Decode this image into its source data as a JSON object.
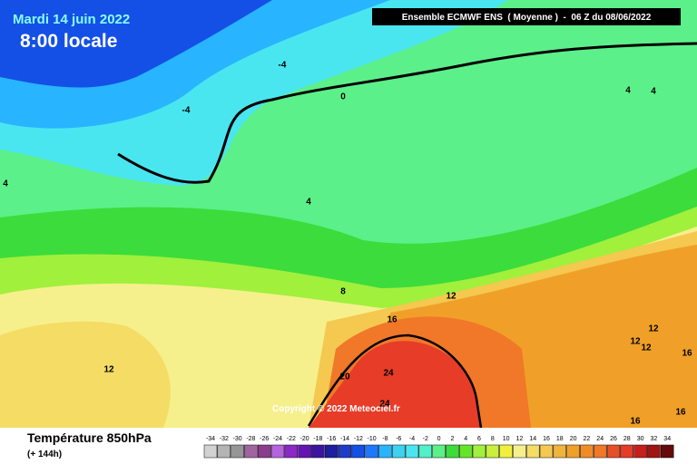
{
  "header": {
    "date": "Mardi 14 juin 2022",
    "time": "8:00 locale",
    "run": "Ensemble ECMWF ENS  ( Moyenne )  -  06 Z du 08/06/2022"
  },
  "copyright": "Copyright © 2022 Meteociel.fr",
  "footer": {
    "title": "Température 850hPa",
    "subtitle": "(+ 144h)"
  },
  "contour_labels": [
    -4,
    -4,
    0,
    4,
    4,
    4,
    4,
    8,
    12,
    12,
    16,
    12,
    12,
    12,
    16,
    20,
    24,
    24,
    16,
    16
  ],
  "legend": {
    "labels": [
      -34,
      -32,
      -30,
      -28,
      -26,
      -24,
      -22,
      -20,
      -18,
      -16,
      -14,
      -12,
      -10,
      -8,
      -6,
      -4,
      -2,
      0,
      2,
      4,
      6,
      8,
      10,
      12,
      14,
      16,
      18,
      20,
      22,
      24,
      26,
      28,
      30,
      32,
      34
    ],
    "colors": [
      "#d2d2d2",
      "#b4b4b4",
      "#969696",
      "#a064a0",
      "#8c3c8c",
      "#b464dc",
      "#8c28c8",
      "#6414b4",
      "#3c14a0",
      "#1e1ea0",
      "#1e3cc8",
      "#1450e6",
      "#1e78ff",
      "#28b4ff",
      "#3cd2f0",
      "#4ae6f0",
      "#50f0c8",
      "#5cf08a",
      "#3cdc3c",
      "#64e628",
      "#a0f03c",
      "#c8f03c",
      "#f0f03c",
      "#f5f08c",
      "#f5dc64",
      "#f5c850",
      "#f0b43c",
      "#f0a028",
      "#f08c28",
      "#f07828",
      "#e65028",
      "#e63c28",
      "#c81e1e",
      "#a01414",
      "#640a0a"
    ]
  }
}
